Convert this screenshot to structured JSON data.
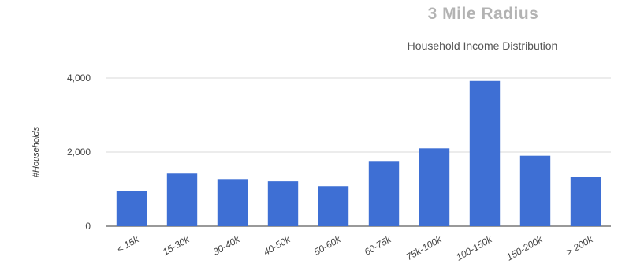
{
  "header": {
    "radius_title": "3 Mile Radius"
  },
  "chart_data": {
    "type": "bar",
    "title": "Household Income Distribution",
    "xlabel": "",
    "ylabel": "#Households",
    "categories": [
      "< 15k",
      "15-30k",
      "30-40k",
      "40-50k",
      "50-60k",
      "60-75k",
      "75k-100k",
      "100-150k",
      "150-200k",
      "> 200k"
    ],
    "values": [
      950,
      1420,
      1270,
      1210,
      1080,
      1760,
      2100,
      3920,
      1900,
      1330
    ],
    "yticks": [
      0,
      2000,
      4000
    ],
    "ytick_labels": [
      "0",
      "2,000",
      "4,000"
    ],
    "ylim": [
      0,
      4000
    ],
    "grid": true,
    "bar_color": "#3e6fd4"
  }
}
